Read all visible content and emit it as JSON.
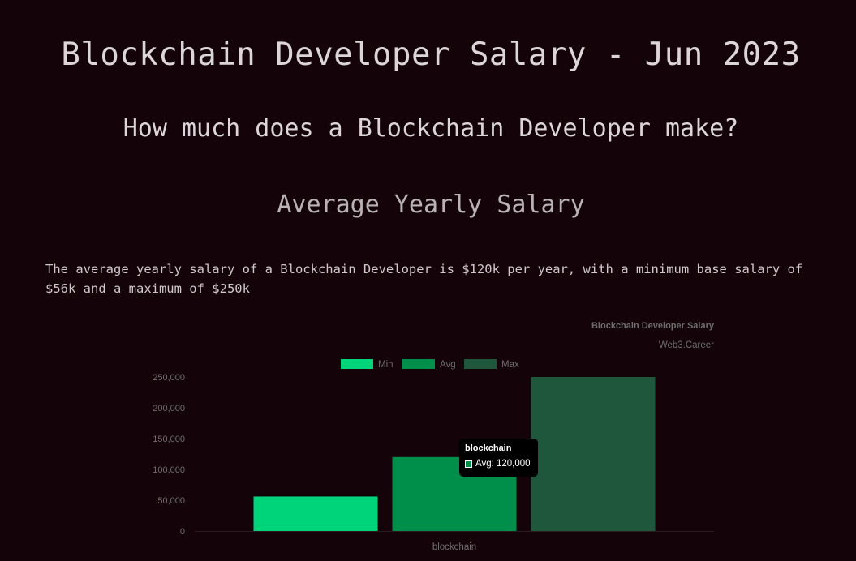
{
  "page": {
    "title": "Blockchain Developer Salary - Jun 2023",
    "subtitle": "How much does a Blockchain Developer make?",
    "section_heading": "Average Yearly Salary",
    "paragraph": "The average yearly salary of a Blockchain Developer is $120k per year, with a minimum base salary of $56k and a maximum of $250k"
  },
  "chart_data": {
    "type": "bar",
    "title": "Blockchain Developer Salary",
    "subtitle": "Web3.Career",
    "categories": [
      "blockchain"
    ],
    "series": [
      {
        "name": "Min",
        "values": [
          56000
        ],
        "color": "#00d47a"
      },
      {
        "name": "Avg",
        "values": [
          120000
        ],
        "color": "#008f4a"
      },
      {
        "name": "Max",
        "values": [
          250000
        ],
        "color": "#1f573c"
      }
    ],
    "ylim": [
      0,
      250000
    ],
    "yticks": [
      0,
      50000,
      100000,
      150000,
      200000,
      250000
    ],
    "ytick_labels": [
      "0",
      "50,000",
      "100,000",
      "150,000",
      "200,000",
      "250,000"
    ],
    "legend_position": "top",
    "grid": false
  },
  "tooltip": {
    "title": "blockchain",
    "text": "Avg: 120,000",
    "swatch_color": "#008f4a"
  }
}
